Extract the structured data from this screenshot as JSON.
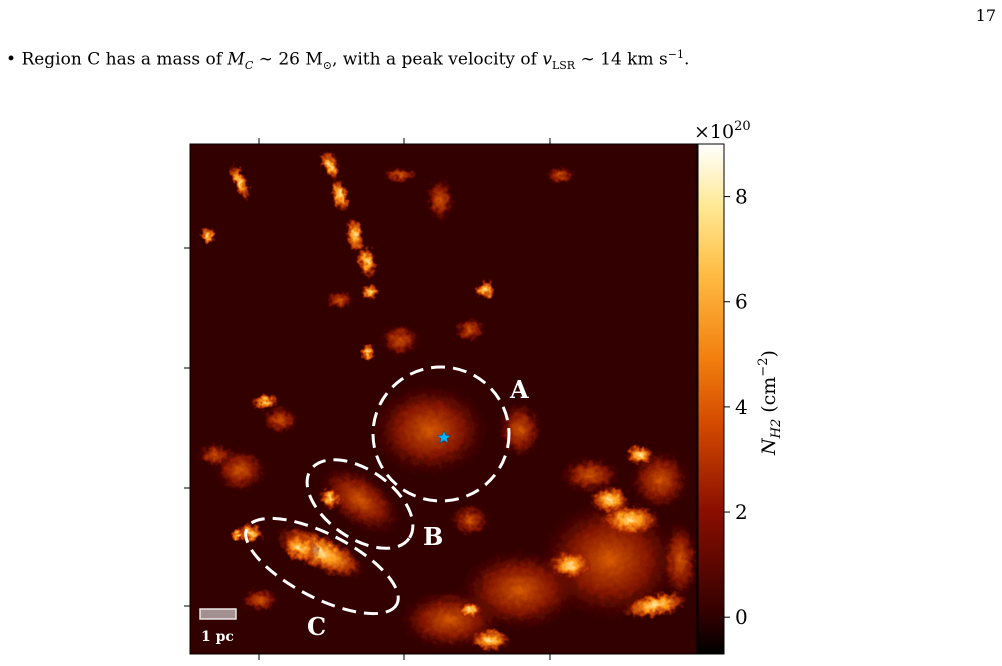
{
  "page_number": "17",
  "bullet": {
    "marker": "•",
    "text_prefix": "Region C has a mass of",
    "mass_symbol": "M",
    "mass_sub": "C",
    "mass_rel": "∼ 26 M",
    "mass_sun_sub": "⊙",
    "mid": ", with a peak velocity of",
    "vel_symbol": "v",
    "vel_sub": "LSR",
    "vel_value": "∼ 14 km s",
    "vel_exp": "−1",
    "end": "."
  },
  "figure": {
    "colorbar": {
      "multiplier_base": "×10",
      "multiplier_exp": "20",
      "label": "N",
      "label_sub": "H2",
      "label_unit": "(cm",
      "label_unit_exp": "−2",
      "label_close": ")",
      "ticks": [
        "0",
        "2",
        "4",
        "6",
        "8"
      ],
      "tick_values": [
        0,
        2,
        4,
        6,
        8
      ],
      "vmin": -0.7,
      "vmax": 9.0,
      "colormap": "afmhot"
    },
    "regions": [
      {
        "label": "A"
      },
      {
        "label": "B"
      },
      {
        "label": "C"
      }
    ],
    "scalebar_label": "1 pc",
    "marker_color": "#00b4ff",
    "map_background": "#330000"
  }
}
